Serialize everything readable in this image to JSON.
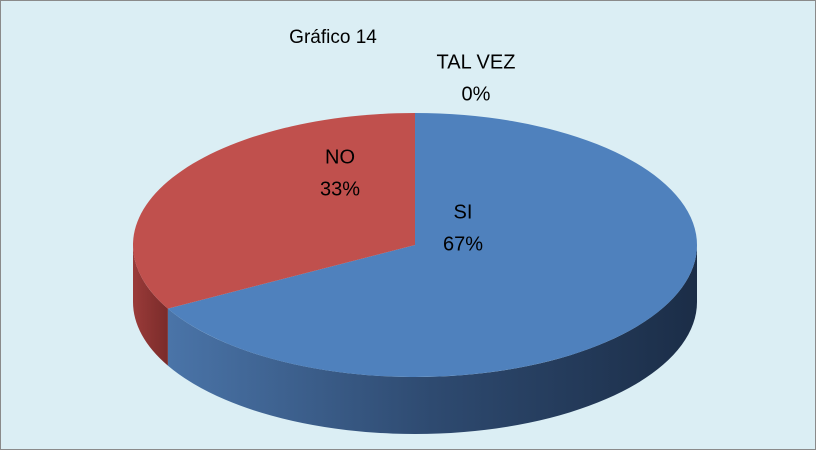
{
  "chart_data": {
    "type": "pie",
    "title": "Gráfico 14",
    "categories": [
      "SI",
      "NO",
      "TAL VEZ"
    ],
    "values": [
      67,
      33,
      0
    ],
    "value_labels": [
      "67%",
      "33%",
      "0%"
    ],
    "colors": [
      "#4f81bd",
      "#c0504d",
      "#9bbb59"
    ]
  }
}
